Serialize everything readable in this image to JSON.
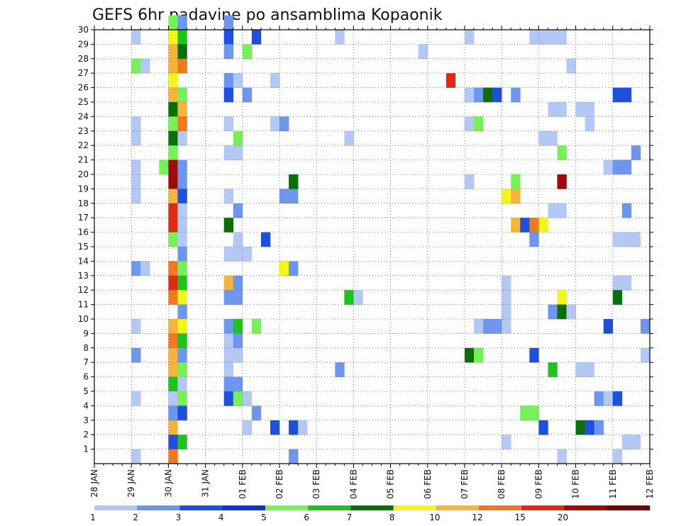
{
  "chart_data": {
    "type": "heatmap",
    "title": "GEFS 6hr padavine po ansamblima Kopaonik",
    "xlabel": "",
    "ylabel": "",
    "x_tick_labels": [
      "28 JAN",
      "29 JAN",
      "30 JAN",
      "31 JAN",
      "01 FEB",
      "02 FEB",
      "03 FEB",
      "04 FEB",
      "05 FEB",
      "06 FEB",
      "07 FEB",
      "08 FEB",
      "09 FEB",
      "10 FEB",
      "11 FEB",
      "12 FEB"
    ],
    "xlim_days": [
      0,
      15
    ],
    "y_members": [
      1,
      2,
      3,
      4,
      5,
      6,
      7,
      8,
      9,
      10,
      11,
      12,
      13,
      14,
      15,
      16,
      17,
      18,
      19,
      20,
      21,
      22,
      23,
      24,
      25,
      26,
      27,
      28,
      29,
      30
    ],
    "ylim": [
      0,
      30
    ],
    "grid": true,
    "colorbar": {
      "position": "bottom",
      "bounds": [
        "1",
        "2",
        "3",
        "4",
        "5",
        "6",
        "7",
        "8",
        "10",
        "12",
        "15",
        "20"
      ],
      "colors": [
        "#b4c8f5",
        "#6e96ec",
        "#1e50dc",
        "#1432d2",
        "#78f05a",
        "#1ec31e",
        "#0a6e0a",
        "#f5f51e",
        "#f5b43c",
        "#f0781e",
        "#dc2d14",
        "#a00a0a",
        "#700008"
      ]
    },
    "cells_note": "each cell: [day_offset_from_28_JAN_in_days (6h steps), ensemble_member, color_class_index]",
    "cells": [
      [
        1.0,
        29,
        0
      ],
      [
        1.0,
        23,
        0
      ],
      [
        1.0,
        22,
        0
      ],
      [
        1.0,
        20,
        0
      ],
      [
        1.0,
        19,
        0
      ],
      [
        1.0,
        18,
        0
      ],
      [
        1.0,
        9,
        0
      ],
      [
        1.0,
        4,
        0
      ],
      [
        1.0,
        0,
        0
      ],
      [
        1.0,
        27,
        4
      ],
      [
        1.25,
        27,
        0
      ],
      [
        1.0,
        13,
        1
      ],
      [
        1.25,
        13,
        0
      ],
      [
        1.0,
        7,
        1
      ],
      [
        1.75,
        20,
        4
      ],
      [
        2.0,
        30,
        4
      ],
      [
        2.0,
        29,
        7
      ],
      [
        2.0,
        28,
        8
      ],
      [
        2.0,
        27,
        8
      ],
      [
        2.0,
        26,
        7
      ],
      [
        2.0,
        25,
        8
      ],
      [
        2.0,
        24,
        6
      ],
      [
        2.0,
        23,
        4
      ],
      [
        2.0,
        22,
        6
      ],
      [
        2.0,
        21,
        4
      ],
      [
        2.0,
        20,
        11
      ],
      [
        2.0,
        19,
        11
      ],
      [
        2.0,
        18,
        8
      ],
      [
        2.0,
        17,
        10
      ],
      [
        2.0,
        16,
        10
      ],
      [
        2.0,
        15,
        4
      ],
      [
        2.0,
        13,
        9
      ],
      [
        2.0,
        12,
        10
      ],
      [
        2.0,
        11,
        9
      ],
      [
        2.0,
        9,
        8
      ],
      [
        2.0,
        8,
        9
      ],
      [
        2.0,
        7,
        8
      ],
      [
        2.0,
        6,
        8
      ],
      [
        2.0,
        5,
        5
      ],
      [
        2.0,
        4,
        0
      ],
      [
        2.0,
        3,
        1
      ],
      [
        2.0,
        2,
        8
      ],
      [
        2.0,
        1,
        2
      ],
      [
        2.0,
        0,
        9
      ],
      [
        2.25,
        30,
        1
      ],
      [
        2.25,
        29,
        5
      ],
      [
        2.25,
        28,
        6
      ],
      [
        2.25,
        27,
        9
      ],
      [
        2.25,
        25,
        4
      ],
      [
        2.25,
        24,
        8
      ],
      [
        2.25,
        23,
        9
      ],
      [
        2.25,
        22,
        0
      ],
      [
        2.25,
        20,
        1
      ],
      [
        2.25,
        19,
        1
      ],
      [
        2.25,
        18,
        2
      ],
      [
        2.25,
        17,
        0
      ],
      [
        2.25,
        16,
        0
      ],
      [
        2.25,
        15,
        0
      ],
      [
        2.25,
        14,
        1
      ],
      [
        2.25,
        13,
        4
      ],
      [
        2.25,
        12,
        5
      ],
      [
        2.25,
        11,
        7
      ],
      [
        2.25,
        10,
        1
      ],
      [
        2.25,
        9,
        7
      ],
      [
        2.25,
        8,
        5
      ],
      [
        2.25,
        7,
        1
      ],
      [
        2.25,
        6,
        4
      ],
      [
        2.25,
        5,
        0
      ],
      [
        2.25,
        4,
        4
      ],
      [
        2.25,
        3,
        2
      ],
      [
        2.25,
        1,
        5
      ],
      [
        3.5,
        30,
        1
      ],
      [
        3.5,
        29,
        2
      ],
      [
        3.5,
        28,
        1
      ],
      [
        3.5,
        26,
        1
      ],
      [
        3.5,
        25,
        2
      ],
      [
        3.5,
        23,
        0
      ],
      [
        3.5,
        21,
        0
      ],
      [
        3.5,
        18,
        0
      ],
      [
        3.5,
        16,
        6
      ],
      [
        3.5,
        14,
        0
      ],
      [
        3.5,
        12,
        8
      ],
      [
        3.5,
        11,
        1
      ],
      [
        3.5,
        9,
        1
      ],
      [
        3.5,
        8,
        0
      ],
      [
        3.5,
        7,
        0
      ],
      [
        3.5,
        6,
        0
      ],
      [
        3.5,
        5,
        1
      ],
      [
        3.5,
        4,
        2
      ],
      [
        3.75,
        26,
        0
      ],
      [
        3.75,
        22,
        4
      ],
      [
        3.75,
        21,
        0
      ],
      [
        3.75,
        17,
        1
      ],
      [
        3.75,
        15,
        0
      ],
      [
        3.75,
        14,
        0
      ],
      [
        3.75,
        12,
        1
      ],
      [
        3.75,
        11,
        1
      ],
      [
        3.75,
        9,
        5
      ],
      [
        3.75,
        8,
        1
      ],
      [
        3.75,
        7,
        0
      ],
      [
        3.75,
        5,
        1
      ],
      [
        3.75,
        4,
        4
      ],
      [
        4.0,
        28,
        4
      ],
      [
        4.0,
        25,
        1
      ],
      [
        4.0,
        14,
        0
      ],
      [
        4.0,
        4,
        0
      ],
      [
        4.0,
        2,
        0
      ],
      [
        4.25,
        29,
        2
      ],
      [
        4.25,
        9,
        4
      ],
      [
        4.25,
        3,
        1
      ],
      [
        4.5,
        15,
        2
      ],
      [
        4.75,
        26,
        0
      ],
      [
        4.75,
        23,
        0
      ],
      [
        4.75,
        2,
        2
      ],
      [
        5.0,
        23,
        1
      ],
      [
        5.0,
        18,
        1
      ],
      [
        5.25,
        18,
        1
      ],
      [
        5.25,
        19,
        6
      ],
      [
        5.25,
        2,
        2
      ],
      [
        5.25,
        0,
        1
      ],
      [
        5.0,
        13,
        7
      ],
      [
        5.25,
        13,
        1
      ],
      [
        5.5,
        2,
        0
      ],
      [
        6.5,
        29,
        0
      ],
      [
        6.75,
        22,
        0
      ],
      [
        6.5,
        6,
        1
      ],
      [
        6.75,
        11,
        5
      ],
      [
        7.0,
        11,
        0
      ],
      [
        8.75,
        28,
        0
      ],
      [
        9.5,
        26,
        10
      ],
      [
        10.0,
        29,
        0
      ],
      [
        10.0,
        25,
        0
      ],
      [
        10.0,
        23,
        0
      ],
      [
        10.0,
        19,
        0
      ],
      [
        10.0,
        7,
        6
      ],
      [
        10.25,
        7,
        4
      ],
      [
        10.25,
        25,
        1
      ],
      [
        10.25,
        23,
        4
      ],
      [
        10.5,
        25,
        6
      ],
      [
        10.75,
        25,
        2
      ],
      [
        10.25,
        9,
        0
      ],
      [
        10.5,
        9,
        1
      ],
      [
        10.75,
        9,
        1
      ],
      [
        11.0,
        12,
        0
      ],
      [
        11.0,
        11,
        0
      ],
      [
        11.0,
        10,
        0
      ],
      [
        11.0,
        9,
        0
      ],
      [
        11.0,
        1,
        0
      ],
      [
        11.0,
        18,
        7
      ],
      [
        11.25,
        18,
        8
      ],
      [
        11.25,
        19,
        4
      ],
      [
        11.25,
        25,
        1
      ],
      [
        11.25,
        16,
        8
      ],
      [
        11.5,
        16,
        2
      ],
      [
        11.75,
        16,
        9
      ],
      [
        12.0,
        16,
        7
      ],
      [
        11.75,
        15,
        1
      ],
      [
        11.5,
        3,
        4
      ],
      [
        11.75,
        3,
        4
      ],
      [
        11.75,
        7,
        2
      ],
      [
        12.0,
        2,
        2
      ],
      [
        11.75,
        29,
        0
      ],
      [
        12.0,
        29,
        0
      ],
      [
        12.25,
        29,
        0
      ],
      [
        12.5,
        29,
        0
      ],
      [
        12.25,
        24,
        0
      ],
      [
        12.5,
        24,
        0
      ],
      [
        12.0,
        22,
        0
      ],
      [
        12.25,
        22,
        0
      ],
      [
        12.5,
        21,
        4
      ],
      [
        12.25,
        17,
        0
      ],
      [
        12.5,
        17,
        0
      ],
      [
        12.5,
        19,
        11
      ],
      [
        12.5,
        11,
        7
      ],
      [
        12.25,
        10,
        1
      ],
      [
        12.5,
        10,
        6
      ],
      [
        12.75,
        10,
        0
      ],
      [
        12.25,
        6,
        5
      ],
      [
        12.5,
        0,
        0
      ],
      [
        12.75,
        27,
        0
      ],
      [
        13.0,
        24,
        0
      ],
      [
        13.25,
        24,
        0
      ],
      [
        13.25,
        23,
        0
      ],
      [
        13.0,
        6,
        0
      ],
      [
        13.25,
        6,
        0
      ],
      [
        13.0,
        2,
        6
      ],
      [
        13.25,
        2,
        2
      ],
      [
        13.5,
        2,
        1
      ],
      [
        13.5,
        4,
        1
      ],
      [
        13.75,
        4,
        0
      ],
      [
        14.0,
        4,
        2
      ],
      [
        14.0,
        25,
        2
      ],
      [
        14.25,
        25,
        2
      ],
      [
        13.75,
        20,
        0
      ],
      [
        14.0,
        20,
        1
      ],
      [
        14.25,
        20,
        1
      ],
      [
        14.5,
        21,
        1
      ],
      [
        14.25,
        17,
        1
      ],
      [
        14.0,
        15,
        0
      ],
      [
        14.25,
        15,
        0
      ],
      [
        14.5,
        15,
        0
      ],
      [
        14.0,
        12,
        0
      ],
      [
        14.25,
        12,
        0
      ],
      [
        14.0,
        11,
        6
      ],
      [
        13.75,
        9,
        2
      ],
      [
        14.25,
        1,
        0
      ],
      [
        14.5,
        1,
        0
      ],
      [
        14.0,
        0,
        0
      ],
      [
        14.75,
        9,
        1
      ],
      [
        14.75,
        7,
        0
      ]
    ]
  }
}
